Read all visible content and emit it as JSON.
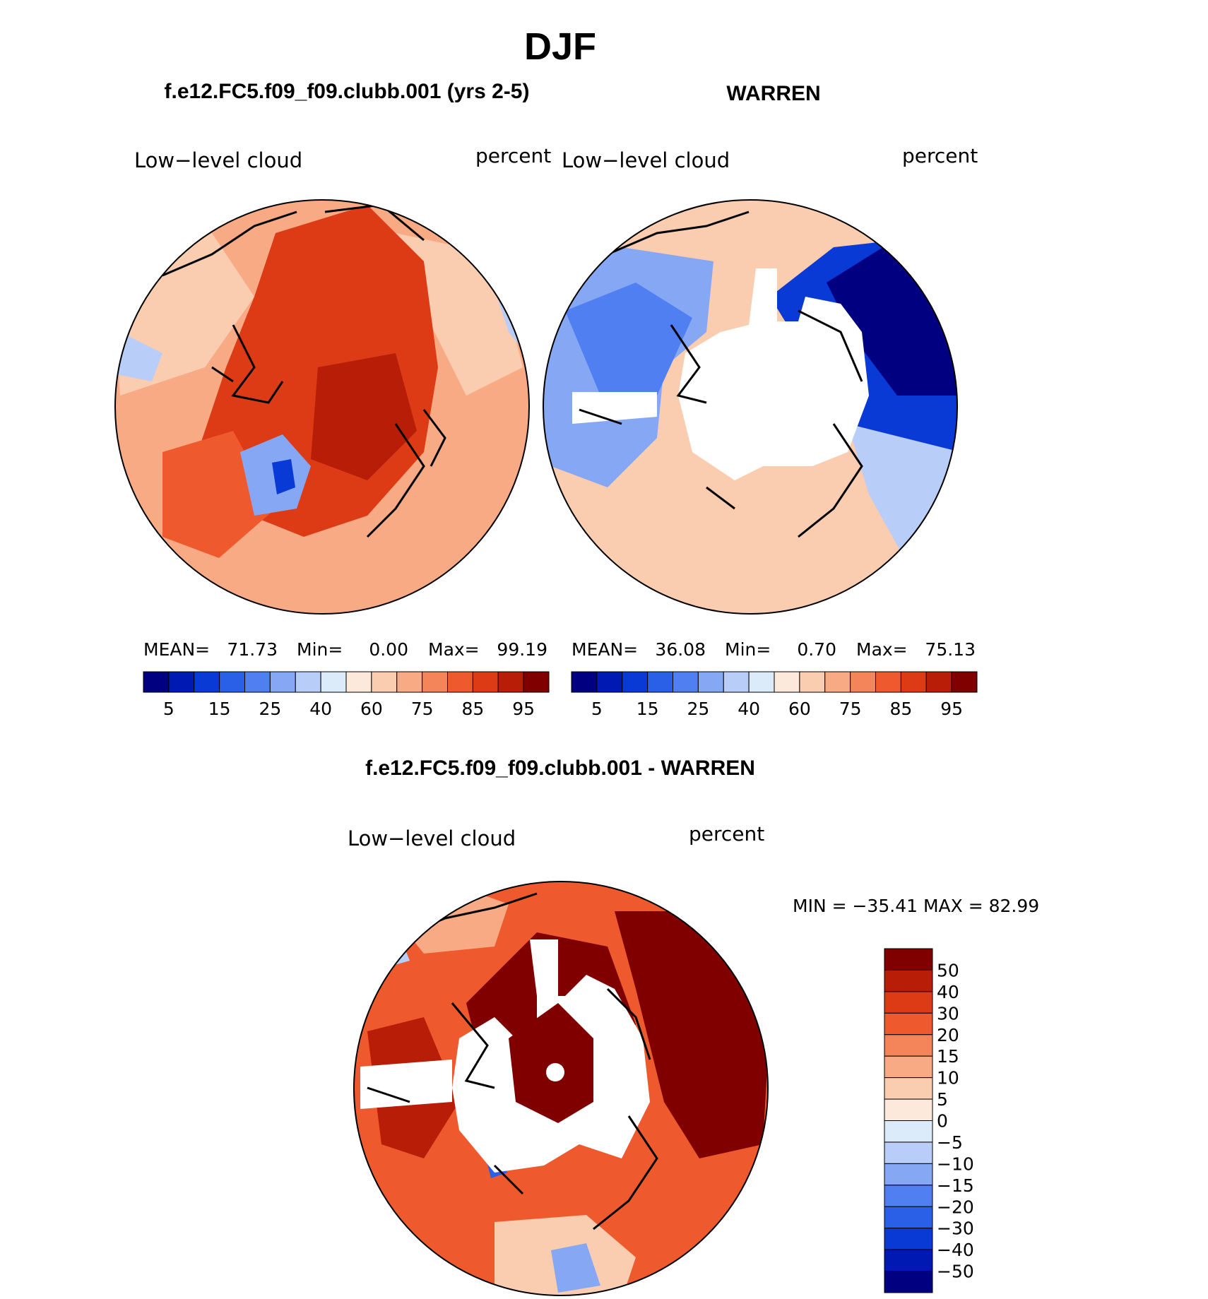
{
  "page": {
    "season_title": "DJF"
  },
  "panels": [
    {
      "id": "model",
      "case_title": "f.e12.FC5.f09_f09.clubb.001 (yrs 2-5)",
      "variable_label": "Low−level cloud",
      "units_label": "percent",
      "stats": {
        "mean_label": "MEAN=",
        "mean": "71.73",
        "min_label": "Min=",
        "min": "0.00",
        "max_label": "Max=",
        "max": "99.19"
      },
      "colorbar_ticks": [
        "5",
        "15",
        "25",
        "40",
        "60",
        "75",
        "85",
        "95"
      ]
    },
    {
      "id": "obs",
      "case_title": "WARREN",
      "variable_label": "Low−level cloud",
      "units_label": "percent",
      "stats": {
        "mean_label": "MEAN=",
        "mean": "36.08",
        "min_label": "Min=",
        "min": "0.70",
        "max_label": "Max=",
        "max": "75.13"
      },
      "colorbar_ticks": [
        "5",
        "15",
        "25",
        "40",
        "60",
        "75",
        "85",
        "95"
      ]
    }
  ],
  "difference": {
    "title": "f.e12.FC5.f09_f09.clubb.001 - WARREN",
    "variable_label": "Low−level cloud",
    "units_label": "percent",
    "min_max_text": "MIN = −35.41 MAX = 82.99",
    "colorbar_labels": [
      "50",
      "40",
      "30",
      "20",
      "15",
      "10",
      "5",
      "0",
      "−5",
      "−10",
      "−15",
      "−20",
      "−30",
      "−40",
      "−50"
    ]
  },
  "colors": {
    "abs_scale": [
      "#000080",
      "#0019b3",
      "#0a3ad6",
      "#2a5fe8",
      "#4f7ff0",
      "#86a8f4",
      "#b8cdf7",
      "#dcebfa",
      "#fde9dc",
      "#fbcdb0",
      "#f8aa85",
      "#f4855b",
      "#ee5a2e",
      "#dd3a16",
      "#b81d08",
      "#800000"
    ],
    "diff_scale": [
      "#800000",
      "#b81d08",
      "#dd3a16",
      "#ee5a2e",
      "#f4855b",
      "#f8aa85",
      "#fbcdb0",
      "#fde9dc",
      "#dcebfa",
      "#b8cdf7",
      "#86a8f4",
      "#4f7ff0",
      "#2a5fe8",
      "#0a3ad6",
      "#0019b3",
      "#000080"
    ],
    "missing": "#ffffff"
  }
}
